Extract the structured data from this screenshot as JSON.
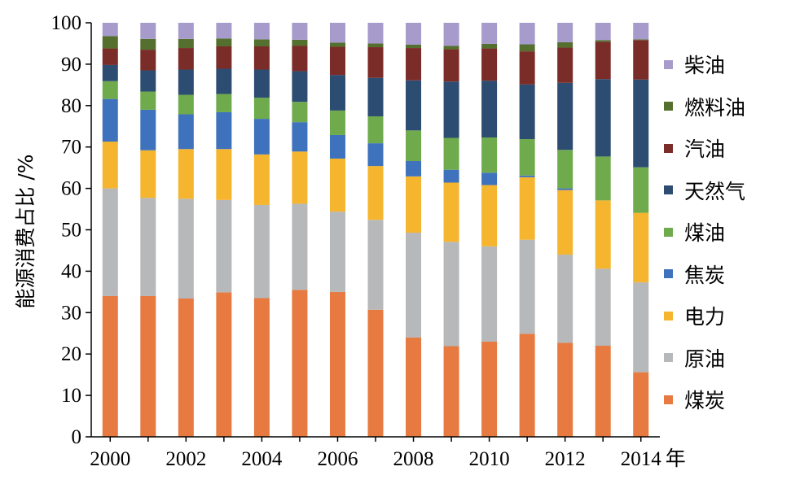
{
  "chart_data": {
    "type": "bar",
    "stacked": true,
    "ylabel": "能源消费占比 /%",
    "xlabel_suffix": "年",
    "ylim": [
      0,
      100
    ],
    "yticks": [
      0,
      10,
      20,
      30,
      40,
      50,
      60,
      70,
      80,
      90,
      100
    ],
    "categories": [
      "2000",
      "2001",
      "2002",
      "2003",
      "2004",
      "2005",
      "2006",
      "2007",
      "2008",
      "2009",
      "2010",
      "2011",
      "2012",
      "2013",
      "2014"
    ],
    "x_tick_labels": [
      "2000",
      "2002",
      "2004",
      "2006",
      "2008",
      "2010",
      "2012",
      "2014"
    ],
    "x_tick_suffix_label": "年",
    "series": [
      {
        "name": "煤炭",
        "color": "#E67A40",
        "values": [
          34.0,
          34.0,
          33.4,
          34.9,
          33.5,
          35.5,
          35.0,
          30.7,
          24.0,
          21.9,
          23.0,
          24.9,
          22.7,
          22.0,
          15.6
        ]
      },
      {
        "name": "原油",
        "color": "#B7B8BA",
        "values": [
          26.0,
          23.7,
          24.1,
          22.3,
          22.5,
          20.8,
          19.4,
          21.7,
          25.3,
          25.2,
          23.0,
          22.7,
          21.3,
          18.6,
          21.7
        ]
      },
      {
        "name": "电力",
        "color": "#F5B52E",
        "values": [
          11.3,
          11.5,
          12.0,
          12.3,
          12.2,
          12.6,
          12.8,
          13.0,
          13.6,
          14.3,
          14.8,
          15.1,
          15.6,
          16.5,
          16.8
        ]
      },
      {
        "name": "焦炭",
        "color": "#3F72BC",
        "values": [
          10.3,
          9.8,
          8.4,
          8.9,
          8.6,
          7.1,
          5.7,
          5.5,
          3.7,
          3.1,
          3.0,
          0.4,
          0.4,
          0.0,
          0.0
        ]
      },
      {
        "name": "煤油",
        "color": "#6FAA4D",
        "values": [
          4.3,
          4.4,
          4.7,
          4.4,
          5.1,
          4.9,
          5.9,
          6.5,
          7.4,
          7.7,
          8.5,
          8.8,
          9.3,
          10.6,
          11.0
        ]
      },
      {
        "name": "天然气",
        "color": "#2D4C72",
        "values": [
          3.9,
          5.1,
          6.1,
          6.1,
          6.8,
          7.4,
          8.6,
          9.3,
          12.1,
          13.6,
          13.7,
          13.2,
          16.2,
          18.7,
          21.2
        ]
      },
      {
        "name": "汽油",
        "color": "#7A2C28",
        "values": [
          4.0,
          5.0,
          5.2,
          5.4,
          5.6,
          6.1,
          6.8,
          7.4,
          7.8,
          7.8,
          7.8,
          8.0,
          8.5,
          9.0,
          9.5
        ]
      },
      {
        "name": "燃料油",
        "color": "#546F2E",
        "values": [
          3.0,
          2.6,
          2.2,
          1.9,
          1.7,
          1.5,
          1.0,
          0.9,
          0.8,
          0.8,
          1.1,
          1.7,
          1.3,
          0.4,
          0.2
        ]
      },
      {
        "name": "柴油",
        "color": "#A79BCB",
        "values": [
          3.2,
          3.9,
          3.9,
          3.8,
          4.0,
          4.1,
          4.8,
          5.0,
          5.3,
          5.6,
          5.1,
          5.2,
          4.7,
          4.2,
          4.0
        ]
      }
    ],
    "legend_order": [
      "柴油",
      "燃料油",
      "汽油",
      "天然气",
      "煤油",
      "焦炭",
      "电力",
      "原油",
      "煤炭"
    ],
    "legend_position": "right"
  }
}
